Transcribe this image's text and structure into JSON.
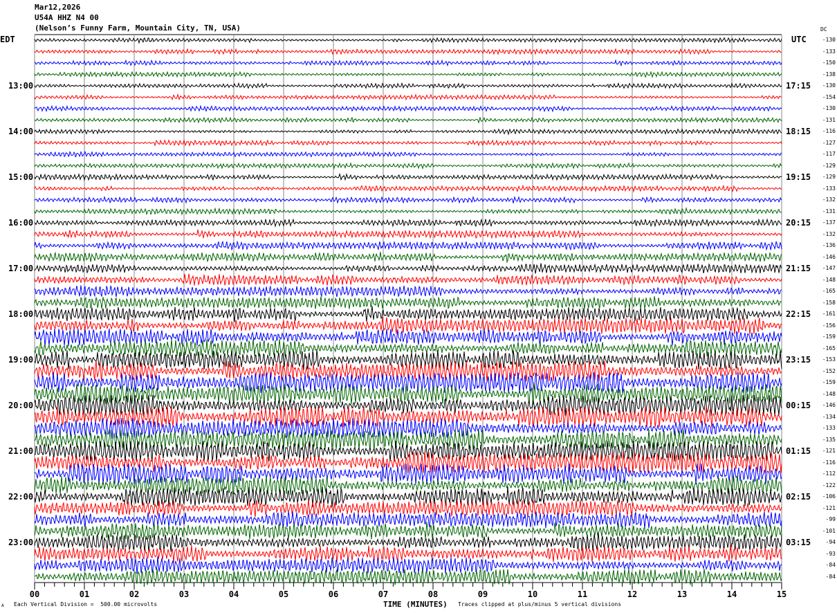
{
  "header": {
    "date": "Mar12,2026",
    "station": "U54A HHZ N4 00",
    "location": "(Nelson’s Funny Farm, Mountain City, TN, USA)"
  },
  "left_axis": {
    "title": "EDT",
    "labels": [
      "13:00",
      "14:00",
      "15:00",
      "16:00",
      "17:00",
      "18:00",
      "19:00",
      "20:00",
      "21:00",
      "22:00",
      "23:00"
    ]
  },
  "right_axis": {
    "title": "UTC",
    "labels": [
      "17:15",
      "18:15",
      "19:15",
      "20:15",
      "21:15",
      "22:15",
      "23:15",
      "00:15",
      "01:15",
      "02:15",
      "03:15"
    ]
  },
  "dc_header": "DC",
  "dc_values": [
    "-130",
    "-133",
    "-150",
    "-138",
    "-130",
    "-154",
    "-130",
    "-131",
    "-116",
    "-127",
    "-117",
    "-129",
    "-129",
    "-133",
    "-132",
    "-131",
    "-137",
    "-132",
    "-136",
    "-146",
    "-147",
    "-148",
    "-165",
    "-158",
    "-161",
    "-156",
    "-159",
    "-165",
    "-153",
    "-152",
    "-159",
    "-148",
    "-146",
    "-134",
    "-133",
    "-135",
    "-121",
    "-116",
    "-112",
    "-122",
    "-106",
    "-121",
    "-99",
    "-101",
    "-94",
    "-93",
    "-84",
    "-84"
  ],
  "footer": {
    "scale_note": "Each Vertical Division =  500.00 microvolts",
    "xlabel": "TIME (MINUTES)",
    "clip_note": "Traces clipped at plus/minus 5 vertical divisions",
    "corner_mark": "A"
  },
  "chart_data": {
    "type": "line",
    "subtype": "helicorder",
    "xlabel": "TIME (MINUTES)",
    "xlim": [
      0,
      15
    ],
    "x_ticks": [
      "00",
      "01",
      "02",
      "03",
      "04",
      "05",
      "06",
      "07",
      "08",
      "09",
      "10",
      "11",
      "12",
      "13",
      "14",
      "15"
    ],
    "trace_count": 48,
    "trace_minutes": 15,
    "trace_colors": [
      "#000000",
      "#ff0000",
      "#0000ff",
      "#006400"
    ],
    "grid": "vertical lines each minute",
    "relative_amplitude": [
      0.15,
      0.15,
      0.15,
      0.15,
      0.15,
      0.15,
      0.15,
      0.15,
      0.15,
      0.15,
      0.15,
      0.15,
      0.17,
      0.17,
      0.18,
      0.18,
      0.22,
      0.25,
      0.25,
      0.28,
      0.3,
      0.32,
      0.35,
      0.38,
      0.45,
      0.5,
      0.5,
      0.55,
      0.6,
      0.65,
      0.7,
      0.65,
      0.7,
      0.7,
      0.65,
      0.65,
      0.7,
      0.7,
      0.65,
      0.6,
      0.6,
      0.55,
      0.5,
      0.5,
      0.55,
      0.5,
      0.5,
      0.5
    ]
  }
}
